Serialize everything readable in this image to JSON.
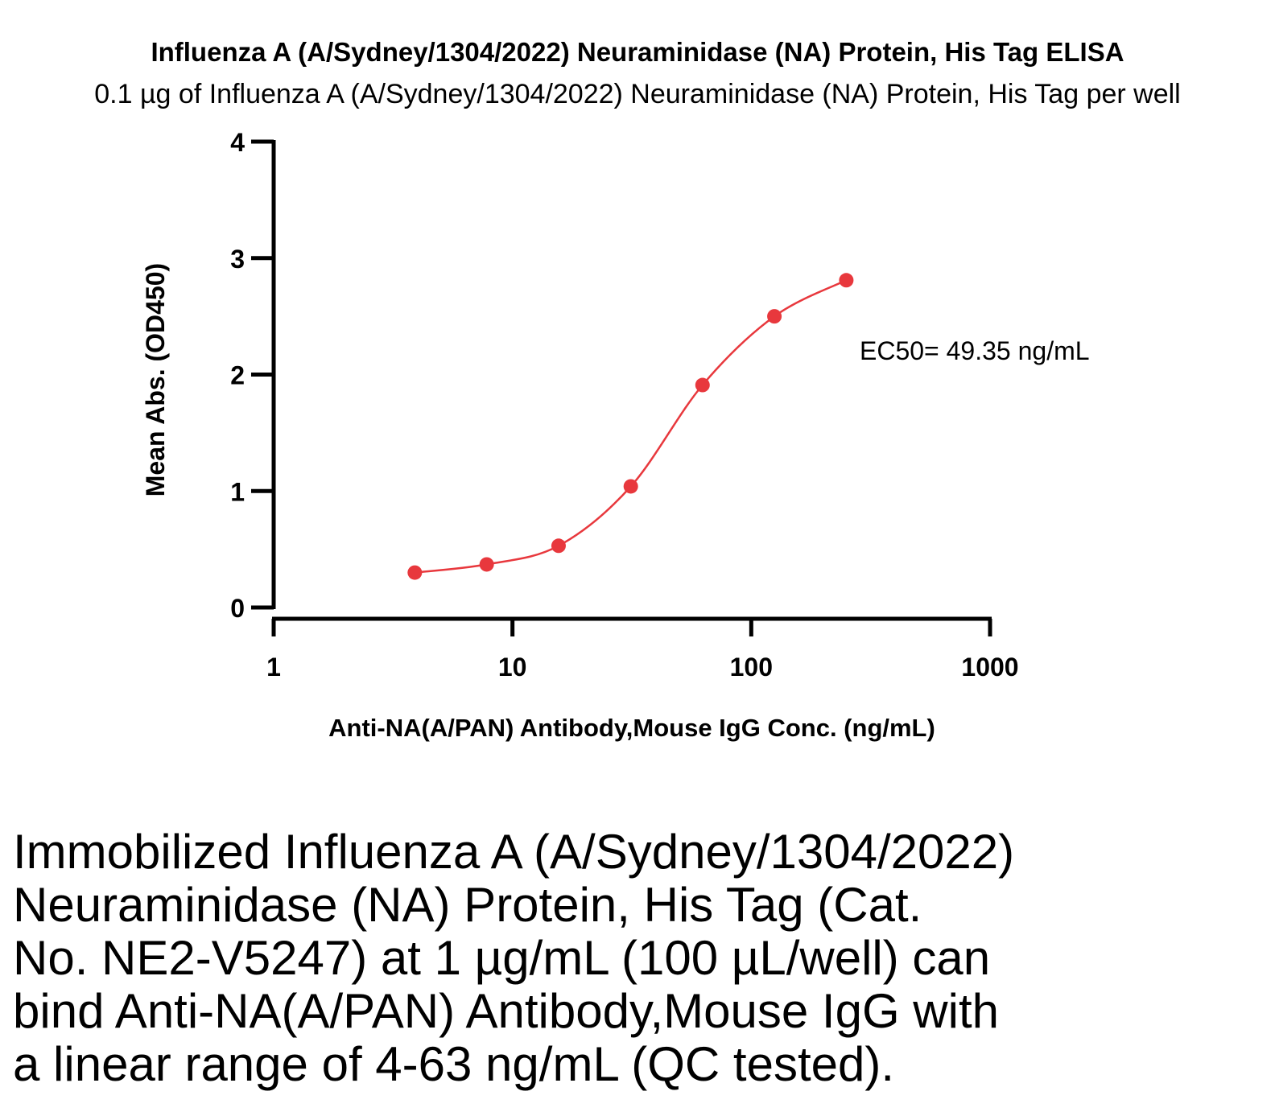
{
  "chart_data": {
    "type": "scatter",
    "title": "Influenza A (A/Sydney/1304/2022) Neuraminidase (NA) Protein, His Tag ELISA",
    "subtitle": "0.1 µg of Influenza A (A/Sydney/1304/2022) Neuraminidase (NA) Protein, His Tag per well",
    "xlabel": "Anti-NA(A/PAN) Antibody,Mouse IgG Conc. (ng/mL)",
    "ylabel": "Mean Abs. (OD450)",
    "x_scale": "log",
    "xlim": [
      1,
      1000
    ],
    "ylim": [
      0,
      4
    ],
    "x_ticks": [
      "1",
      "10",
      "100",
      "1000"
    ],
    "y_ticks": [
      "0",
      "1",
      "2",
      "3",
      "4"
    ],
    "grid": false,
    "annotation": "EC50= 49.35 ng/mL",
    "color": "#e8383d",
    "fit": "4PL sigmoid curve",
    "points": [
      {
        "x": 3.9,
        "y": 0.3
      },
      {
        "x": 7.8,
        "y": 0.37
      },
      {
        "x": 15.6,
        "y": 0.53
      },
      {
        "x": 31.3,
        "y": 1.04
      },
      {
        "x": 62.5,
        "y": 1.91
      },
      {
        "x": 125,
        "y": 2.5
      },
      {
        "x": 250,
        "y": 2.81
      }
    ]
  },
  "caption": {
    "lines": [
      "Immobilized Influenza A (A/Sydney/1304/2022)",
      "Neuraminidase (NA) Protein, His Tag (Cat.",
      "No. NE2-V5247) at 1 µg/mL (100 µL/well) can",
      "bind Anti-NA(A/PAN) Antibody,Mouse IgG with",
      "a linear range of 4-63 ng/mL (QC tested)."
    ]
  }
}
